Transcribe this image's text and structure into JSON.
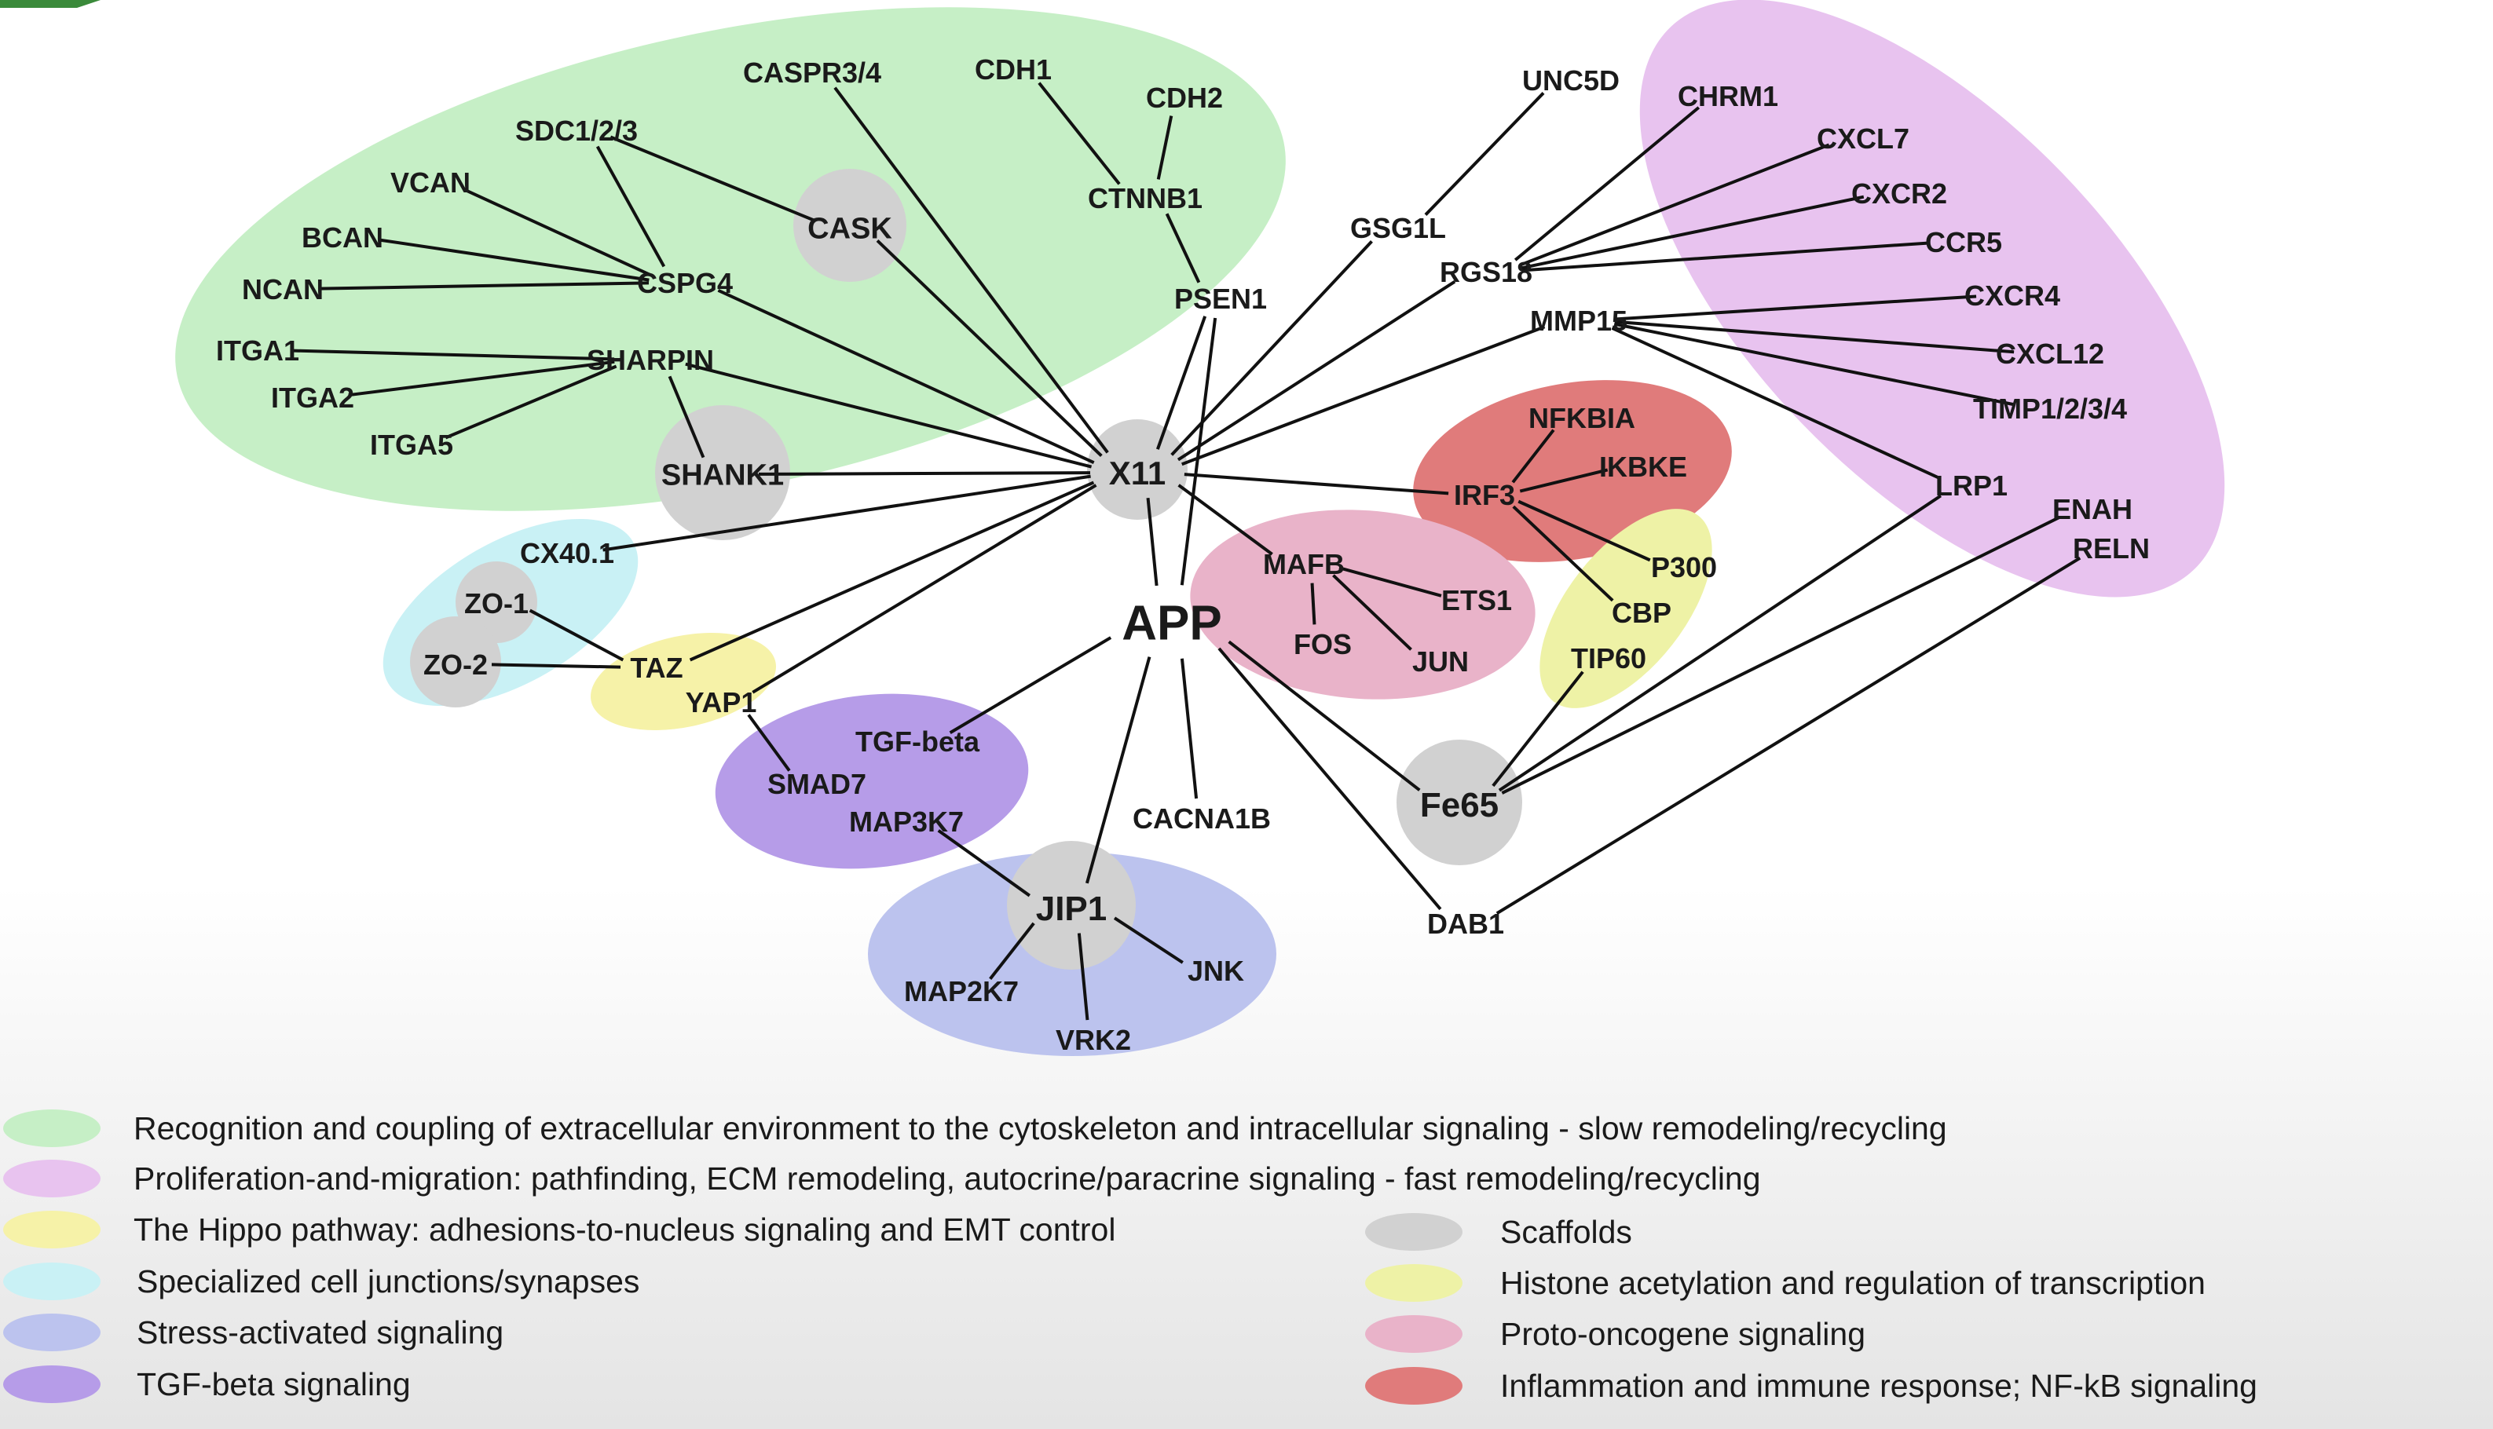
{
  "colors": {
    "recognition": "#c6efc6",
    "proliferation": "#e8c3ef",
    "hippo": "#f6f2a8",
    "junctions": "#c9f1f5",
    "stress": "#bcc3ee",
    "tgf": "#b69ce8",
    "scaffold": "#d1d1d1",
    "histone": "#eef2a6",
    "proto": "#e9b3c9",
    "inflammation": "#e07b7b",
    "corner_tab": "#3a8a3a",
    "edge": "#111111"
  },
  "legend": [
    {
      "key": "recognition",
      "text": "Recognition and coupling of extracellular environment to the cytoskeleton and intracellular signaling - slow remodeling/recycling"
    },
    {
      "key": "proliferation",
      "text": "Proliferation-and-migration: pathfinding, ECM remodeling, autocrine/paracrine signaling - fast remodeling/recycling"
    },
    {
      "key": "hippo",
      "text": "The Hippo pathway:  adhesions-to-nucleus signaling and EMT control"
    },
    {
      "key": "junctions",
      "text": "Specialized cell junctions/synapses"
    },
    {
      "key": "stress",
      "text": "Stress-activated signaling"
    },
    {
      "key": "tgf",
      "text": "TGF-beta signaling"
    },
    {
      "key": "scaffold",
      "text": "Scaffolds"
    },
    {
      "key": "histone",
      "text": "Histone acetylation and regulation of transcription"
    },
    {
      "key": "proto",
      "text": "Proto-oncogene signaling"
    },
    {
      "key": "inflammation",
      "text": "Inflammation and immune response; NF-kB signaling"
    }
  ],
  "nodes": [
    {
      "id": "APP",
      "label": "APP",
      "hub": true
    },
    {
      "id": "X11",
      "label": "X11",
      "scaffold": true
    },
    {
      "id": "Fe65",
      "label": "Fe65",
      "scaffold": true
    },
    {
      "id": "JIP1",
      "label": "JIP1",
      "scaffold": true
    },
    {
      "id": "CASK",
      "label": "CASK",
      "scaffold": true
    },
    {
      "id": "SHANK1",
      "label": "SHANK1",
      "scaffold": true
    },
    {
      "id": "ZO1",
      "label": "ZO-1",
      "scaffold": true
    },
    {
      "id": "ZO2",
      "label": "ZO-2",
      "scaffold": true
    },
    {
      "id": "CASPR",
      "label": "CASPR3/4"
    },
    {
      "id": "CDH1",
      "label": "CDH1"
    },
    {
      "id": "CDH2",
      "label": "CDH2"
    },
    {
      "id": "CTNNB1",
      "label": "CTNNB1"
    },
    {
      "id": "PSEN1",
      "label": "PSEN1"
    },
    {
      "id": "SDC",
      "label": "SDC1/2/3"
    },
    {
      "id": "VCAN",
      "label": "VCAN"
    },
    {
      "id": "BCAN",
      "label": "BCAN"
    },
    {
      "id": "NCAN",
      "label": "NCAN"
    },
    {
      "id": "CSPG4",
      "label": "CSPG4"
    },
    {
      "id": "ITGA1",
      "label": "ITGA1"
    },
    {
      "id": "ITGA2",
      "label": "ITGA2"
    },
    {
      "id": "ITGA5",
      "label": "ITGA5"
    },
    {
      "id": "SHARPIN",
      "label": "SHARPIN"
    },
    {
      "id": "UNC5D",
      "label": "UNC5D"
    },
    {
      "id": "CHRM1",
      "label": "CHRM1"
    },
    {
      "id": "CXCL7",
      "label": "CXCL7"
    },
    {
      "id": "CXCR2",
      "label": "CXCR2"
    },
    {
      "id": "CCR5",
      "label": "CCR5"
    },
    {
      "id": "CXCR4",
      "label": "CXCR4"
    },
    {
      "id": "CXCL12",
      "label": "CXCL12"
    },
    {
      "id": "TIMP",
      "label": "TIMP1/2/3/4"
    },
    {
      "id": "LRP1",
      "label": "LRP1"
    },
    {
      "id": "ENAH",
      "label": "ENAH"
    },
    {
      "id": "RELN",
      "label": "RELN"
    },
    {
      "id": "GSG1L",
      "label": "GSG1L"
    },
    {
      "id": "RGS18",
      "label": "RGS18"
    },
    {
      "id": "MMP15",
      "label": "MMP15"
    },
    {
      "id": "NFKBIA",
      "label": "NFKBIA"
    },
    {
      "id": "IKBKE",
      "label": "IKBKE"
    },
    {
      "id": "IRF3",
      "label": "IRF3"
    },
    {
      "id": "P300",
      "label": "P300"
    },
    {
      "id": "CBP",
      "label": "CBP"
    },
    {
      "id": "TIP60",
      "label": "TIP60"
    },
    {
      "id": "MAFB",
      "label": "MAFB"
    },
    {
      "id": "ETS1",
      "label": "ETS1"
    },
    {
      "id": "FOS",
      "label": "FOS"
    },
    {
      "id": "JUN",
      "label": "JUN"
    },
    {
      "id": "CX40",
      "label": "CX40.1"
    },
    {
      "id": "TAZ",
      "label": "TAZ"
    },
    {
      "id": "YAP1",
      "label": "YAP1"
    },
    {
      "id": "TGFB",
      "label": "TGF-beta"
    },
    {
      "id": "SMAD7",
      "label": "SMAD7"
    },
    {
      "id": "MAP3K7",
      "label": "MAP3K7"
    },
    {
      "id": "CACNA1B",
      "label": "CACNA1B"
    },
    {
      "id": "DAB1",
      "label": "DAB1"
    },
    {
      "id": "MAP2K7",
      "label": "MAP2K7"
    },
    {
      "id": "JNK",
      "label": "JNK"
    },
    {
      "id": "VRK2",
      "label": "VRK2"
    }
  ],
  "edges": [
    [
      "X11",
      "APP"
    ],
    [
      "PSEN1",
      "APP"
    ],
    [
      "TGFB",
      "APP"
    ],
    [
      "JIP1",
      "APP"
    ],
    [
      "CACNA1B",
      "APP"
    ],
    [
      "Fe65",
      "APP"
    ],
    [
      "DAB1",
      "APP"
    ],
    [
      "X11",
      "CASPR"
    ],
    [
      "X11",
      "CASK"
    ],
    [
      "X11",
      "CSPG4"
    ],
    [
      "X11",
      "SHARPIN"
    ],
    [
      "X11",
      "SHANK1"
    ],
    [
      "X11",
      "PSEN1"
    ],
    [
      "X11",
      "GSG1L"
    ],
    [
      "X11",
      "RGS18"
    ],
    [
      "X11",
      "MMP15"
    ],
    [
      "X11",
      "IRF3"
    ],
    [
      "X11",
      "MAFB"
    ],
    [
      "X11",
      "CX40"
    ],
    [
      "X11",
      "TAZ"
    ],
    [
      "X11",
      "YAP1"
    ],
    [
      "CDH1",
      "CTNNB1"
    ],
    [
      "CDH2",
      "CTNNB1"
    ],
    [
      "CTNNB1",
      "PSEN1"
    ],
    [
      "SDC",
      "CASK"
    ],
    [
      "SDC",
      "CSPG4"
    ],
    [
      "VCAN",
      "CSPG4"
    ],
    [
      "BCAN",
      "CSPG4"
    ],
    [
      "NCAN",
      "CSPG4"
    ],
    [
      "ITGA1",
      "SHARPIN"
    ],
    [
      "ITGA2",
      "SHARPIN"
    ],
    [
      "ITGA5",
      "SHARPIN"
    ],
    [
      "SHARPIN",
      "SHANK1"
    ],
    [
      "UNC5D",
      "GSG1L"
    ],
    [
      "CHRM1",
      "RGS18"
    ],
    [
      "CXCL7",
      "RGS18"
    ],
    [
      "CXCR2",
      "RGS18"
    ],
    [
      "CCR5",
      "RGS18"
    ],
    [
      "CXCR4",
      "MMP15"
    ],
    [
      "CXCL12",
      "MMP15"
    ],
    [
      "TIMP",
      "MMP15"
    ],
    [
      "LRP1",
      "MMP15"
    ],
    [
      "NFKBIA",
      "IRF3"
    ],
    [
      "IKBKE",
      "IRF3"
    ],
    [
      "P300",
      "IRF3"
    ],
    [
      "CBP",
      "IRF3"
    ],
    [
      "ETS1",
      "MAFB"
    ],
    [
      "FOS",
      "MAFB"
    ],
    [
      "JUN",
      "MAFB"
    ],
    [
      "TIP60",
      "Fe65"
    ],
    [
      "LRP1",
      "Fe65"
    ],
    [
      "ENAH",
      "Fe65"
    ],
    [
      "RELN",
      "DAB1"
    ],
    [
      "ZO1",
      "TAZ"
    ],
    [
      "ZO2",
      "TAZ"
    ],
    [
      "YAP1",
      "SMAD7"
    ],
    [
      "MAP3K7",
      "JIP1"
    ],
    [
      "MAP2K7",
      "JIP1"
    ],
    [
      "JNK",
      "JIP1"
    ],
    [
      "VRK2",
      "JIP1"
    ]
  ]
}
